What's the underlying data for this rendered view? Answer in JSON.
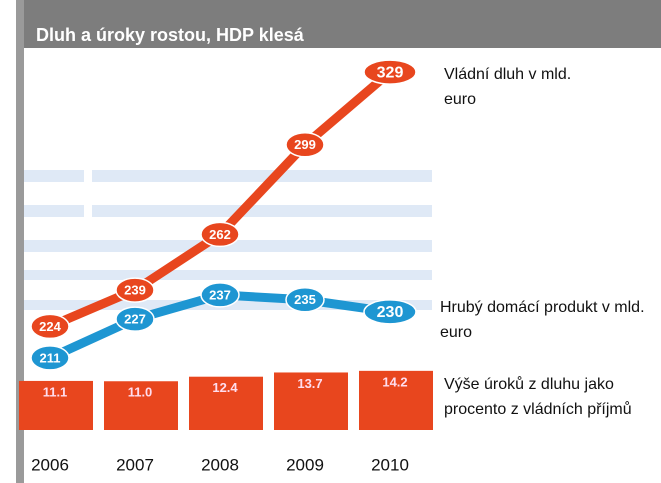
{
  "chart_data": {
    "type": "combo",
    "title": "Dluh a  úroky rostou, HDP klesá",
    "categories": [
      "2006",
      "2007",
      "2008",
      "2009",
      "2010"
    ],
    "series": [
      {
        "name": "Vládní dluh v mld. euro",
        "type": "line",
        "color": "#e8461e",
        "values": [
          224,
          239,
          262,
          299,
          329
        ]
      },
      {
        "name": "Hrubý domácí produkt v mld. euro",
        "type": "line",
        "color": "#1e96d2",
        "values": [
          211,
          227,
          237,
          235,
          230
        ]
      },
      {
        "name": "Výše úroků z dluhu jako procento z vládních příjmů",
        "type": "bar",
        "axis": "y2",
        "color": "#e8461e",
        "values": [
          11.1,
          11.0,
          12.4,
          13.7,
          14.2
        ],
        "value_labels": [
          "11.1",
          "11.0",
          "12.4",
          "13.7",
          "14.2"
        ]
      }
    ],
    "ylim": [
      206,
      334
    ],
    "y2lim": [
      -4,
      16
    ]
  }
}
